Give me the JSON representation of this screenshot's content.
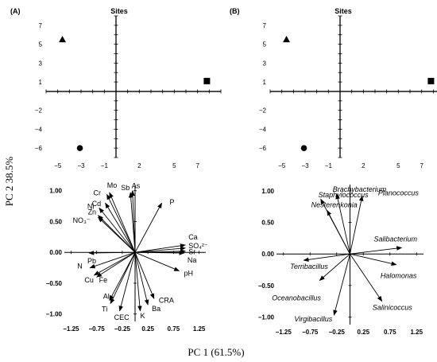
{
  "figure": {
    "xlabel": "PC 1 (61.5%)",
    "ylabel": "PC 2 38.5%"
  },
  "chart_data": [
    {
      "id": "A-sites",
      "panel_label": "(A)",
      "type": "scatter",
      "title": "Sites",
      "xlim": [
        -6,
        9
      ],
      "ylim": [
        -7,
        8
      ],
      "xticks": [
        -5,
        -3,
        -1,
        2,
        5,
        7
      ],
      "xtick_labels": [
        "−5",
        "−3",
        "−1",
        "2",
        "5",
        "7"
      ],
      "yticks": [
        7,
        5,
        3,
        1,
        -2,
        -4,
        -6
      ],
      "ytick_labels": [
        "7",
        "5",
        "3",
        "1",
        "−2",
        "−4",
        "−6"
      ],
      "points": [
        {
          "x": -4.6,
          "y": 5.5,
          "marker": "triangle"
        },
        {
          "x": 7.8,
          "y": 1.1,
          "marker": "square"
        },
        {
          "x": -3.1,
          "y": -6.0,
          "marker": "circle"
        }
      ]
    },
    {
      "id": "B-sites",
      "panel_label": "(B)",
      "type": "scatter",
      "title": "Sites",
      "xlim": [
        -6,
        9
      ],
      "ylim": [
        -7,
        8
      ],
      "xticks": [
        -5,
        -3,
        -1,
        2,
        5,
        7
      ],
      "xtick_labels": [
        "−5",
        "−3",
        "−1",
        "2",
        "5",
        "7"
      ],
      "yticks": [
        7,
        5,
        3,
        1,
        -2,
        -4,
        -6
      ],
      "ytick_labels": [
        "7",
        "5",
        "3",
        "1",
        "−2",
        "−4",
        "−6"
      ],
      "points": [
        {
          "x": -4.6,
          "y": 5.5,
          "marker": "triangle"
        },
        {
          "x": 7.8,
          "y": 1.1,
          "marker": "square"
        },
        {
          "x": -3.1,
          "y": -6.0,
          "marker": "circle"
        }
      ]
    },
    {
      "id": "A-variables",
      "type": "biplot",
      "xlim": [
        -1.38,
        1.38
      ],
      "ylim": [
        -1.12,
        1.1
      ],
      "xticks": [
        -1.25,
        -0.75,
        -0.25,
        0.25,
        0.75,
        1.25
      ],
      "xtick_labels": [
        "−1.25",
        "−0.75",
        "−0.25",
        "0.25",
        "0.75",
        "1.25"
      ],
      "yticks": [
        1.0,
        0.5,
        0.0,
        -0.5,
        -1.0
      ],
      "ytick_labels": [
        "1.00",
        "0.50",
        "0.00",
        "−0.50",
        "−1.00"
      ],
      "vectors": [
        {
          "name": "Mo",
          "x": -0.5,
          "y": 0.97
        },
        {
          "name": "Cr",
          "x": -0.55,
          "y": 0.94
        },
        {
          "name": "Cd",
          "x": -0.58,
          "y": 0.8
        },
        {
          "name": "Ni",
          "x": -0.7,
          "y": 0.72
        },
        {
          "name": "Zn",
          "x": -0.72,
          "y": 0.6
        },
        {
          "name": "NO₃⁻",
          "x": -0.72,
          "y": 0.57
        },
        {
          "name": "Sb",
          "x": -0.09,
          "y": 0.97
        },
        {
          "name": "As",
          "x": -0.05,
          "y": 1.0
        },
        {
          "name": "P",
          "x": 0.52,
          "y": 0.8
        },
        {
          "name": "Ca",
          "x": 0.98,
          "y": 0.12
        },
        {
          "name": "SO₄²⁻",
          "x": 0.98,
          "y": 0.07
        },
        {
          "name": "Sr",
          "x": 0.98,
          "y": 0.02
        },
        {
          "name": "Na",
          "x": 0.96,
          "y": -0.01
        },
        {
          "name": "pH",
          "x": 0.86,
          "y": -0.3
        },
        {
          "name": "Pb",
          "x": -0.9,
          "y": -0.01
        },
        {
          "name": "N",
          "x": -0.88,
          "y": -0.25
        },
        {
          "name": "Cu",
          "x": -0.8,
          "y": -0.37
        },
        {
          "name": "Fe",
          "x": -0.75,
          "y": -0.4
        },
        {
          "name": "Al",
          "x": -0.5,
          "y": -0.78
        },
        {
          "name": "Ti",
          "x": -0.48,
          "y": -0.83
        },
        {
          "name": "CEC",
          "x": -0.3,
          "y": -0.95
        },
        {
          "name": "K",
          "x": 0.1,
          "y": -0.95
        },
        {
          "name": "Ba",
          "x": 0.25,
          "y": -0.85
        },
        {
          "name": "CRA",
          "x": 0.37,
          "y": -0.75
        }
      ]
    },
    {
      "id": "B-variables",
      "type": "biplot",
      "xlim": [
        -1.38,
        1.38
      ],
      "ylim": [
        -1.12,
        1.1
      ],
      "xticks": [
        -1.25,
        -0.75,
        -0.25,
        0.25,
        0.75,
        1.25
      ],
      "xtick_labels": [
        "−1.25",
        "−0.75",
        "−0.25",
        "0.25",
        "0.75",
        "1.25"
      ],
      "yticks": [
        1.0,
        0.5,
        0.0,
        -0.5,
        -1.0
      ],
      "ytick_labels": [
        "1.00",
        "0.50",
        "0.00",
        "−0.50",
        "−1.00"
      ],
      "vectors": [
        {
          "name": "Brachybacterium",
          "x": -0.25,
          "y": 0.95
        },
        {
          "name": "Staphylococcus",
          "x": -0.55,
          "y": 0.87
        },
        {
          "name": "Nesterenkonia",
          "x": -0.43,
          "y": 0.69
        },
        {
          "name": "Planococcus",
          "x": 0.23,
          "y": 0.92
        },
        {
          "name": "Salibacterium",
          "x": 0.97,
          "y": 0.1
        },
        {
          "name": "Halomonas",
          "x": 0.87,
          "y": -0.17
        },
        {
          "name": "Salinicoccus",
          "x": 0.6,
          "y": -0.75
        },
        {
          "name": "Terribacillus",
          "x": -0.87,
          "y": -0.1
        },
        {
          "name": "Oceanobacillus",
          "x": -0.57,
          "y": -0.42
        },
        {
          "name": "Virgibacillus",
          "x": -0.3,
          "y": -0.97
        }
      ]
    }
  ]
}
